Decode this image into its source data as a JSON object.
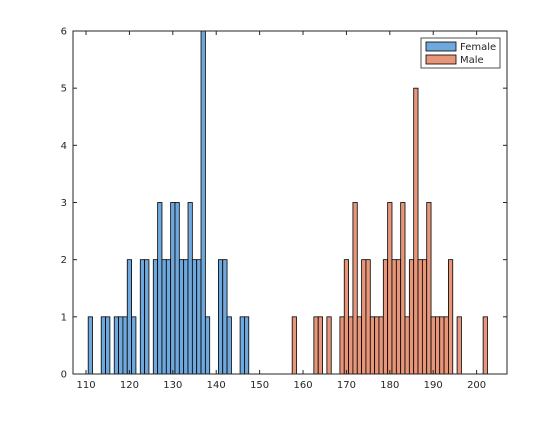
{
  "chart_data": {
    "type": "bar",
    "title": "",
    "xlabel": "",
    "ylabel": "",
    "xlim": [
      107,
      207
    ],
    "ylim": [
      0,
      6
    ],
    "bin_width": 1,
    "x_ticks": [
      110,
      120,
      130,
      140,
      150,
      160,
      170,
      180,
      190,
      200
    ],
    "y_ticks": [
      0,
      1,
      2,
      3,
      4,
      5,
      6
    ],
    "legend": {
      "position": "top-right",
      "entries": [
        "Female",
        "Male"
      ]
    },
    "series": [
      {
        "name": "Female",
        "color": "#6FA8DC",
        "bins": [
          {
            "x": 111,
            "count": 1
          },
          {
            "x": 114,
            "count": 1
          },
          {
            "x": 115,
            "count": 1
          },
          {
            "x": 117,
            "count": 1
          },
          {
            "x": 118,
            "count": 1
          },
          {
            "x": 119,
            "count": 1
          },
          {
            "x": 120,
            "count": 2
          },
          {
            "x": 121,
            "count": 1
          },
          {
            "x": 123,
            "count": 2
          },
          {
            "x": 124,
            "count": 2
          },
          {
            "x": 126,
            "count": 2
          },
          {
            "x": 127,
            "count": 3
          },
          {
            "x": 128,
            "count": 2
          },
          {
            "x": 129,
            "count": 2
          },
          {
            "x": 130,
            "count": 3
          },
          {
            "x": 131,
            "count": 3
          },
          {
            "x": 132,
            "count": 2
          },
          {
            "x": 133,
            "count": 2
          },
          {
            "x": 134,
            "count": 3
          },
          {
            "x": 135,
            "count": 2
          },
          {
            "x": 136,
            "count": 2
          },
          {
            "x": 137,
            "count": 6
          },
          {
            "x": 138,
            "count": 1
          },
          {
            "x": 141,
            "count": 2
          },
          {
            "x": 142,
            "count": 2
          },
          {
            "x": 143,
            "count": 1
          },
          {
            "x": 146,
            "count": 1
          },
          {
            "x": 147,
            "count": 1
          }
        ]
      },
      {
        "name": "Male",
        "color": "#E8967A",
        "bins": [
          {
            "x": 158,
            "count": 1
          },
          {
            "x": 163,
            "count": 1
          },
          {
            "x": 164,
            "count": 1
          },
          {
            "x": 166,
            "count": 1
          },
          {
            "x": 169,
            "count": 1
          },
          {
            "x": 170,
            "count": 2
          },
          {
            "x": 171,
            "count": 1
          },
          {
            "x": 172,
            "count": 3
          },
          {
            "x": 173,
            "count": 1
          },
          {
            "x": 174,
            "count": 2
          },
          {
            "x": 175,
            "count": 2
          },
          {
            "x": 176,
            "count": 1
          },
          {
            "x": 177,
            "count": 1
          },
          {
            "x": 178,
            "count": 1
          },
          {
            "x": 179,
            "count": 2
          },
          {
            "x": 180,
            "count": 3
          },
          {
            "x": 181,
            "count": 2
          },
          {
            "x": 182,
            "count": 2
          },
          {
            "x": 183,
            "count": 3
          },
          {
            "x": 184,
            "count": 1
          },
          {
            "x": 185,
            "count": 2
          },
          {
            "x": 186,
            "count": 5
          },
          {
            "x": 187,
            "count": 2
          },
          {
            "x": 188,
            "count": 2
          },
          {
            "x": 189,
            "count": 3
          },
          {
            "x": 190,
            "count": 1
          },
          {
            "x": 191,
            "count": 1
          },
          {
            "x": 192,
            "count": 1
          },
          {
            "x": 193,
            "count": 1
          },
          {
            "x": 194,
            "count": 2
          },
          {
            "x": 196,
            "count": 1
          },
          {
            "x": 202,
            "count": 1
          }
        ]
      }
    ]
  }
}
